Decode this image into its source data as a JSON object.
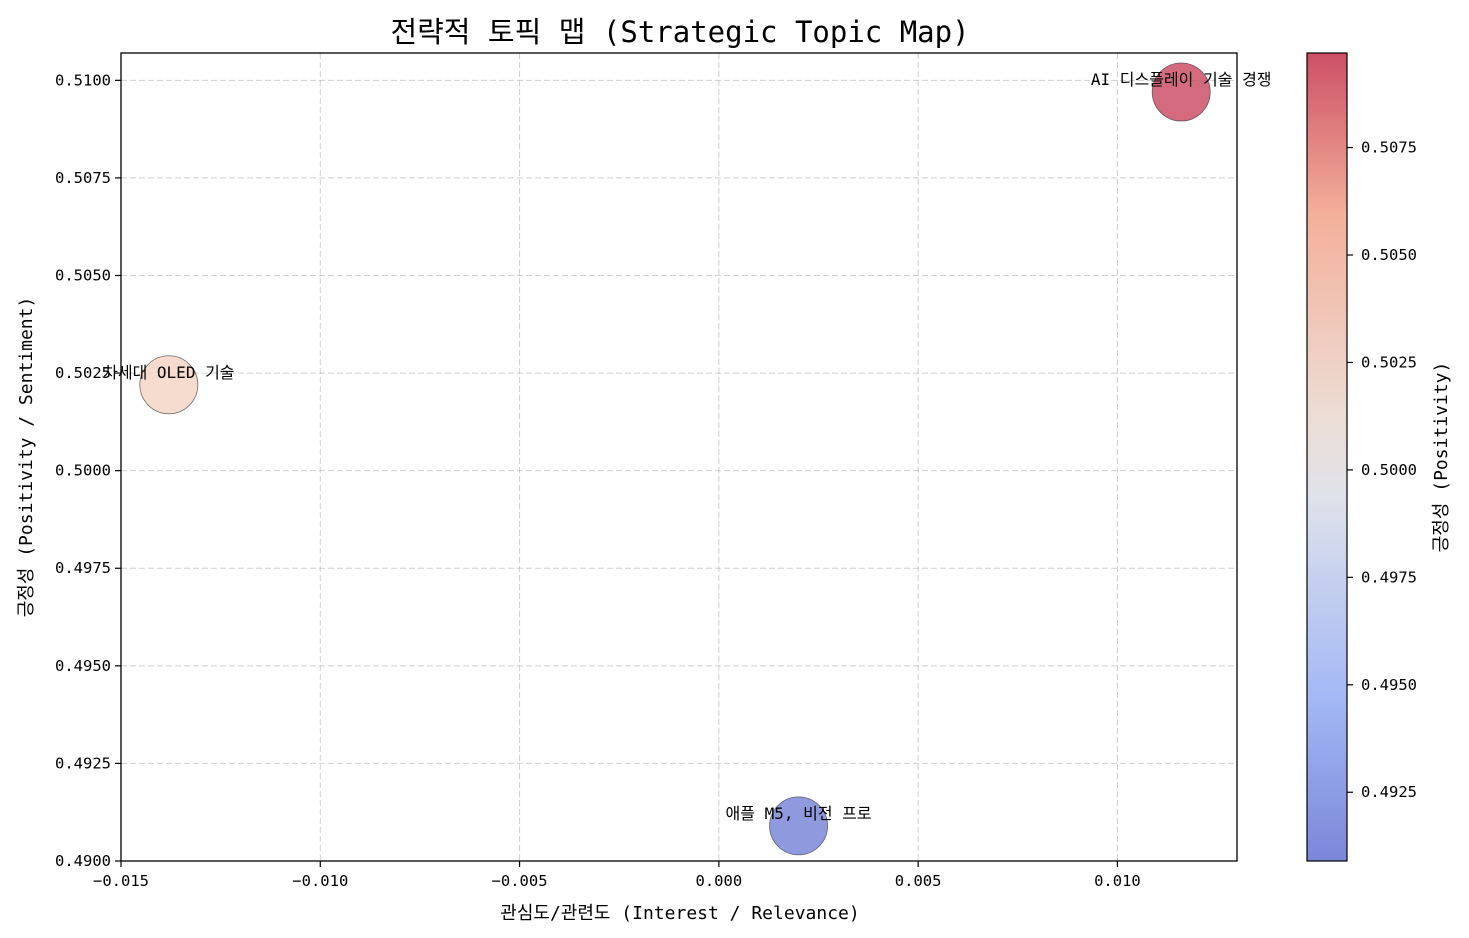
{
  "chart_data": {
    "type": "scatter",
    "title": "전략적 토픽 맵 (Strategic Topic Map)",
    "xlabel": "관심도/관련도 (Interest / Relevance)",
    "ylabel": "긍정성 (Positivity / Sentiment)",
    "xlim": [
      -0.015,
      0.013
    ],
    "ylim": [
      0.49,
      0.5107
    ],
    "x_ticks": [
      -0.015,
      -0.01,
      -0.005,
      0.0,
      0.005,
      0.01
    ],
    "x_tick_labels": [
      "−0.015",
      "−0.010",
      "−0.005",
      "0.000",
      "0.005",
      "0.010"
    ],
    "y_ticks": [
      0.49,
      0.4925,
      0.495,
      0.4975,
      0.5,
      0.5025,
      0.505,
      0.5075,
      0.51
    ],
    "y_tick_labels": [
      "0.4900",
      "0.4925",
      "0.4950",
      "0.4975",
      "0.5000",
      "0.5025",
      "0.5050",
      "0.5075",
      "0.5100"
    ],
    "grid": true,
    "points": [
      {
        "label": "AI 디스플레이 기술 경쟁",
        "x": 0.0116,
        "y": 0.5097,
        "color": "#cc5066"
      },
      {
        "label": "차세대 OLED 기술",
        "x": -0.0138,
        "y": 0.5022,
        "color": "#f4d6c6"
      },
      {
        "label": "애플 M5, 비전 프로",
        "x": 0.002,
        "y": 0.4909,
        "color": "#7b87d8"
      }
    ],
    "colorbar": {
      "label": "긍정성 (Positivity)",
      "range": [
        0.4909,
        0.5097
      ],
      "ticks": [
        0.4925,
        0.495,
        0.4975,
        0.5,
        0.5025,
        0.505,
        0.5075
      ],
      "tick_labels": [
        "0.4925",
        "0.4950",
        "0.4975",
        "0.5000",
        "0.5025",
        "0.5050",
        "0.5075"
      ],
      "colormap": "coolwarm"
    }
  }
}
